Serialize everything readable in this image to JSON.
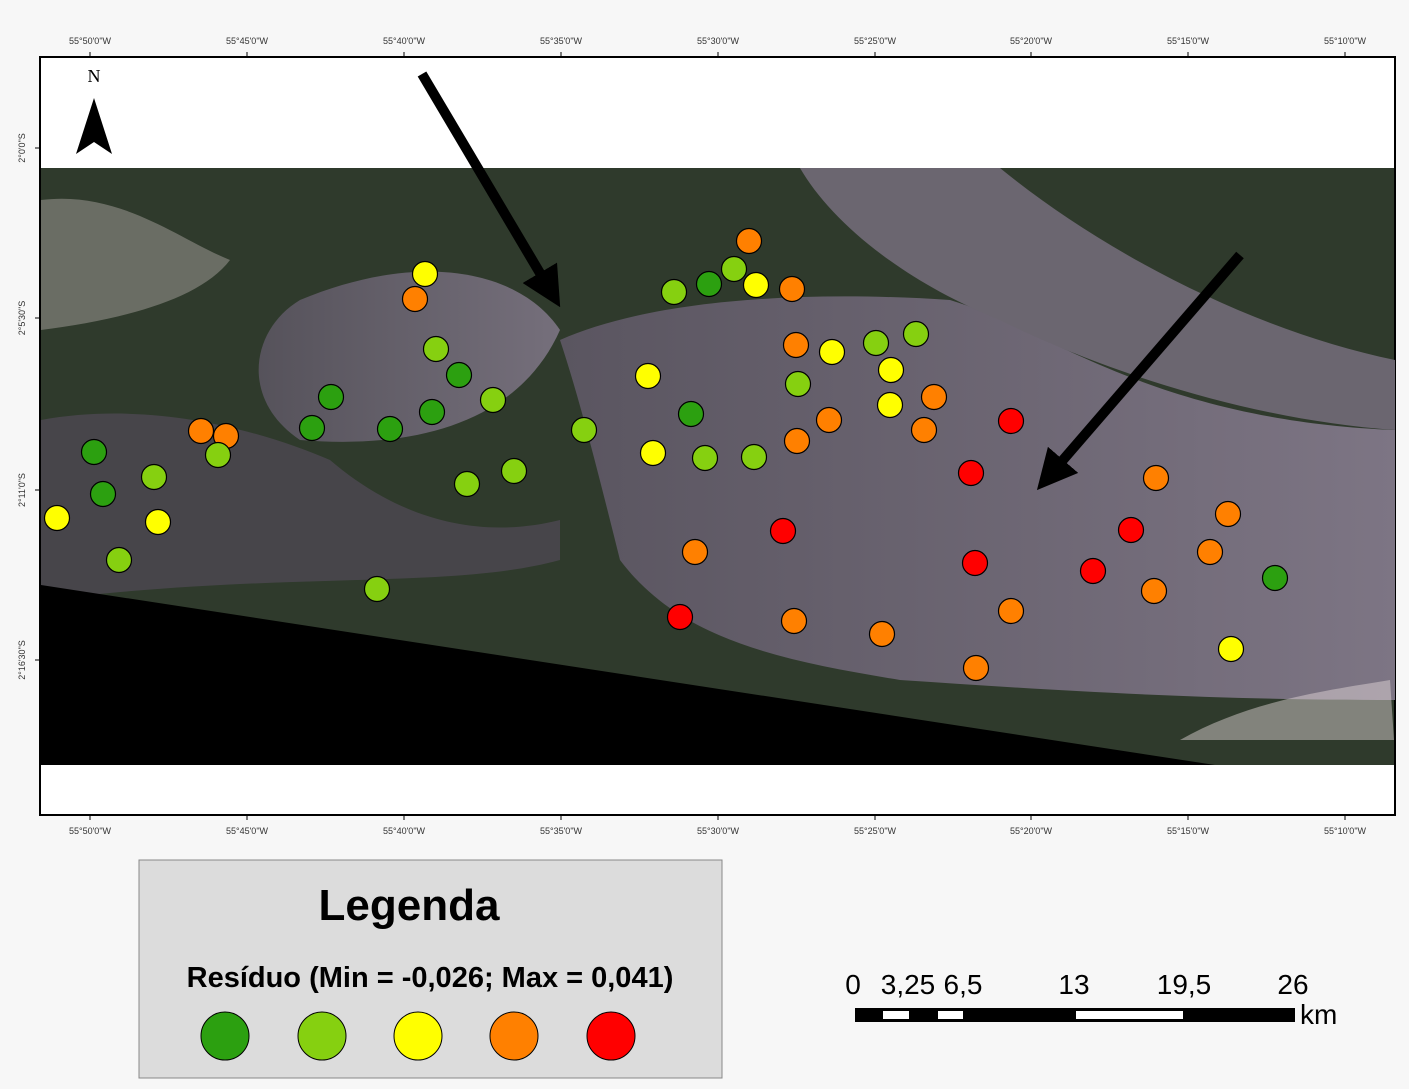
{
  "map": {
    "north": "N",
    "top_ticks": [
      "55°50'0\"W",
      "55°45'0\"W",
      "55°40'0\"W",
      "55°35'0\"W",
      "55°30'0\"W",
      "55°25'0\"W",
      "55°20'0\"W",
      "55°15'0\"W",
      "55°10'0\"W"
    ],
    "bottom_ticks": [
      "55°50'0\"W",
      "55°45'0\"W",
      "55°40'0\"W",
      "55°35'0\"W",
      "55°30'0\"W",
      "55°25'0\"W",
      "55°20'0\"W",
      "55°15'0\"W",
      "55°10'0\"W"
    ],
    "left_ticks": [
      "2°0'0\"S",
      "2°5'30\"S",
      "2°11'0\"S",
      "2°16'30\"S"
    ]
  },
  "legend": {
    "title": "Legenda",
    "subtitle": "Resíduo (Min = -0,026; Max = 0,041)"
  },
  "scale_bar": {
    "labels": [
      "0",
      "3,25",
      "6,5",
      "13",
      "19,5",
      "26"
    ],
    "unit": "km"
  }
}
